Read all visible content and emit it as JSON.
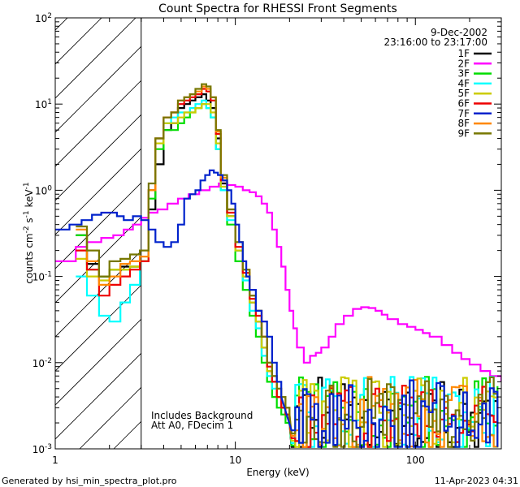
{
  "chart_data": {
    "type": "line",
    "title": "Count Spectra for RHESSI Front Segments",
    "xlabel": "Energy (keV)",
    "ylabel_parts": {
      "a": "counts cm",
      "b": "-2",
      "c": " s",
      "d": "-1",
      "e": " keV",
      "f": "-1"
    },
    "xscale": "log",
    "yscale": "log",
    "xlim": [
      1,
      300
    ],
    "ylim": [
      0.001,
      100
    ],
    "x_ticks": [
      {
        "label": "1",
        "value": 1
      },
      {
        "label": "10",
        "value": 10
      },
      {
        "label": "100",
        "value": 100
      }
    ],
    "y_ticks": [
      {
        "base": "10",
        "exp": "-3",
        "value": 0.001
      },
      {
        "base": "10",
        "exp": "-2",
        "value": 0.01
      },
      {
        "base": "10",
        "exp": "-1",
        "value": 0.1
      },
      {
        "base": "10",
        "exp": "0",
        "value": 1
      },
      {
        "base": "10",
        "exp": "1",
        "value": 10
      },
      {
        "base": "10",
        "exp": "2",
        "value": 100
      }
    ],
    "date": "9-Dec-2002",
    "time_range": "23:16:00 to 23:17:00",
    "annotation_lines": [
      "Includes Background",
      "Att A0, FDecim 1"
    ],
    "hatched_region_keV": [
      1,
      3
    ],
    "legend_position": "top-right",
    "series": [
      {
        "name": "1F",
        "color": "#000000"
      },
      {
        "name": "2F",
        "color": "#ff00ff"
      },
      {
        "name": "3F",
        "color": "#00dd00"
      },
      {
        "name": "4F",
        "color": "#00ffff"
      },
      {
        "name": "5F",
        "color": "#cccc00"
      },
      {
        "name": "6F",
        "color": "#ee0000"
      },
      {
        "name": "7F",
        "color": "#0022cc"
      },
      {
        "name": "8F",
        "color": "#ff8800"
      },
      {
        "name": "9F",
        "color": "#777700"
      }
    ],
    "spectra": {
      "standard": {
        "series": [
          "1F",
          "3F",
          "4F",
          "5F",
          "6F",
          "8F",
          "9F"
        ],
        "energy_keV": [
          1.3,
          1.5,
          1.75,
          2.0,
          2.3,
          2.6,
          2.95,
          3.3,
          3.6,
          4.0,
          4.4,
          4.8,
          5.2,
          5.6,
          6.0,
          6.5,
          6.9,
          7.3,
          7.8,
          8.3,
          9.0,
          10,
          11,
          12,
          13,
          14,
          15,
          16,
          17,
          18,
          19,
          20
        ],
        "counts": {
          "1F": [
            0.3,
            0.14,
            0.1,
            0.12,
            0.13,
            0.13,
            0.15,
            0.6,
            2,
            5,
            6,
            9,
            10,
            11,
            12,
            13,
            11,
            9,
            4,
            1.2,
            0.5,
            0.2,
            0.1,
            0.05,
            0.03,
            0.015,
            0.008,
            0.006,
            0.004,
            0.003,
            0.0025,
            0.002
          ],
          "3F": [
            0.3,
            0.12,
            0.1,
            0.12,
            0.12,
            0.13,
            0.15,
            0.8,
            3,
            5,
            5,
            6,
            7,
            8,
            9,
            10,
            9,
            7,
            3,
            1,
            0.4,
            0.15,
            0.07,
            0.035,
            0.02,
            0.01,
            0.006,
            0.004,
            0.003,
            0.0025,
            0.002,
            0.002
          ],
          "4F": [
            0.1,
            0.06,
            0.035,
            0.03,
            0.05,
            0.08,
            0.15,
            1,
            4,
            6,
            7,
            8,
            8,
            9,
            10,
            11,
            9,
            7,
            3,
            1,
            0.45,
            0.2,
            0.09,
            0.04,
            0.025,
            0.012,
            0.007,
            0.005,
            0.004,
            0.003,
            0.0025,
            0.002
          ],
          "5F": [
            0.16,
            0.1,
            0.09,
            0.12,
            0.12,
            0.13,
            0.15,
            1,
            3.5,
            6,
            6,
            7,
            8,
            8,
            9,
            10,
            10,
            8,
            3.5,
            1.1,
            0.5,
            0.2,
            0.1,
            0.05,
            0.03,
            0.015,
            0.008,
            0.006,
            0.004,
            0.003,
            0.0025,
            0.002
          ],
          "6F": [
            0.2,
            0.12,
            0.06,
            0.08,
            0.1,
            0.12,
            0.15,
            1,
            4,
            7,
            8,
            10,
            11,
            12,
            13,
            15,
            14,
            11,
            4.5,
            1.3,
            0.55,
            0.22,
            0.11,
            0.055,
            0.035,
            0.02,
            0.009,
            0.006,
            0.004,
            0.003,
            0.0025,
            0.002
          ],
          "8F": [
            0.35,
            0.15,
            0.08,
            0.1,
            0.14,
            0.15,
            0.17,
            1,
            4,
            7,
            8,
            11,
            12,
            13,
            14,
            16,
            15,
            12,
            4.8,
            1.4,
            0.6,
            0.25,
            0.12,
            0.06,
            0.04,
            0.02,
            0.01,
            0.007,
            0.005,
            0.004,
            0.003,
            0.0025
          ],
          "9F": [
            0.38,
            0.2,
            0.1,
            0.15,
            0.16,
            0.18,
            0.2,
            1.2,
            4,
            7,
            8,
            11,
            12,
            13,
            15,
            17,
            16,
            12,
            5,
            1.5,
            0.6,
            0.25,
            0.12,
            0.06,
            0.04,
            0.02,
            0.01,
            0.007,
            0.005,
            0.004,
            0.003,
            0.0025
          ]
        }
      },
      "2F": {
        "energy_keV": [
          1.0,
          1.3,
          1.5,
          1.8,
          2.1,
          2.4,
          2.7,
          3.0,
          3.3,
          3.7,
          4.2,
          4.8,
          5.5,
          6.3,
          7.2,
          8.1,
          9.0,
          10,
          11,
          12,
          13,
          14,
          15,
          16,
          17,
          18,
          19,
          20,
          21,
          22,
          24,
          26,
          28,
          30,
          33,
          36,
          40,
          45,
          50,
          55,
          60,
          65,
          70,
          80,
          90,
          100,
          110,
          120,
          140,
          160,
          180,
          200,
          230,
          260,
          300
        ],
        "values": [
          0.15,
          0.22,
          0.25,
          0.28,
          0.3,
          0.35,
          0.4,
          0.48,
          0.55,
          0.6,
          0.7,
          0.8,
          0.9,
          1,
          1.1,
          1.2,
          1.15,
          1.1,
          1.0,
          0.95,
          0.85,
          0.7,
          0.55,
          0.35,
          0.22,
          0.13,
          0.07,
          0.04,
          0.025,
          0.015,
          0.01,
          0.012,
          0.013,
          0.015,
          0.02,
          0.028,
          0.035,
          0.042,
          0.044,
          0.043,
          0.04,
          0.036,
          0.032,
          0.028,
          0.026,
          0.024,
          0.022,
          0.02,
          0.016,
          0.013,
          0.011,
          0.0095,
          0.008,
          0.007,
          0.006
        ]
      },
      "7F": {
        "energy_keV": [
          1.0,
          1.2,
          1.4,
          1.6,
          1.8,
          2.0,
          2.2,
          2.4,
          2.7,
          3.0,
          3.3,
          3.6,
          4.0,
          4.4,
          4.8,
          5.2,
          5.6,
          6.0,
          6.4,
          6.8,
          7.2,
          7.6,
          8.0,
          8.5,
          9.0,
          9.5,
          10,
          10.5,
          11,
          11.5,
          12,
          13,
          14,
          15,
          16,
          17,
          18
        ],
        "values": [
          0.35,
          0.4,
          0.45,
          0.52,
          0.55,
          0.55,
          0.5,
          0.45,
          0.5,
          0.45,
          0.35,
          0.25,
          0.22,
          0.25,
          0.4,
          0.8,
          0.9,
          1,
          1.3,
          1.5,
          1.7,
          1.6,
          1.5,
          1.3,
          1.0,
          0.7,
          0.4,
          0.25,
          0.15,
          0.1,
          0.07,
          0.04,
          0.03,
          0.02,
          0.01,
          0.006,
          0.004
        ]
      }
    }
  },
  "footer": {
    "left": "Generated by hsi_min_spectra_plot.pro",
    "right": "11-Apr-2023 04:31"
  }
}
